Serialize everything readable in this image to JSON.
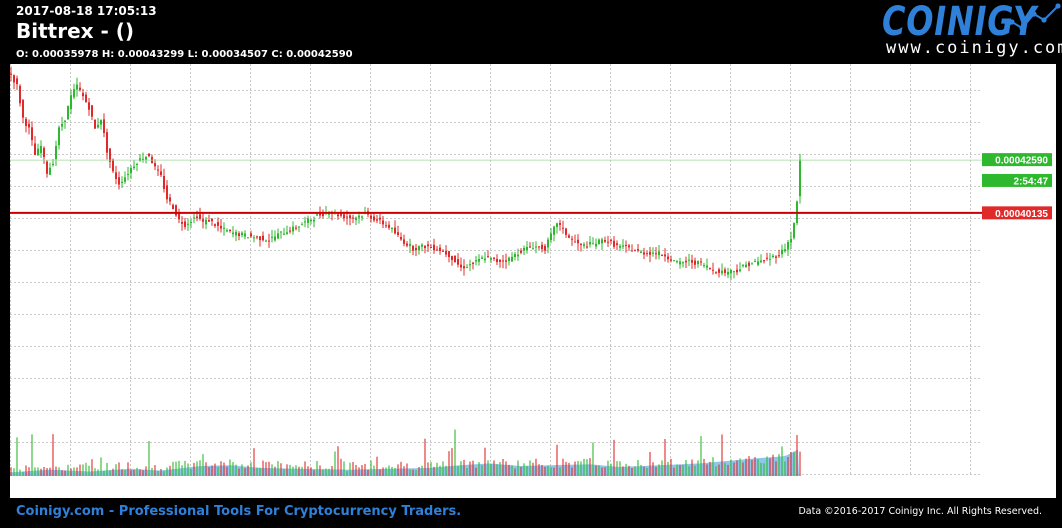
{
  "header": {
    "timestamp": "2017-08-18 17:05:13",
    "title": "Bittrex -  ()",
    "ohlc": "O: 0.00035978 H: 0.00043299 L: 0.00034507 C: 0.00042590"
  },
  "logo": {
    "name": "COINIGY",
    "url": "www.coinigy.com"
  },
  "footer": {
    "left": "Coinigy.com - Professional Tools For Cryptocurrency Traders.",
    "right": "Data ©2016-2017 Coinigy Inc. All Rights Reserved."
  },
  "chart_data": {
    "type": "candlestick",
    "ylim": [
      0.00028,
      0.00047
    ],
    "grid": true,
    "colors": {
      "up": "#2db82d",
      "down": "#e02a2a",
      "volume_area": "#6ab4e6",
      "price_line": "#cc0000"
    },
    "price_labels": [
      {
        "text": "0.00042590",
        "value": 0.0004259,
        "color": "#2db82d"
      },
      {
        "text": "2:54:47",
        "value": 0.0004163,
        "color": "#2db82d"
      },
      {
        "text": "0.00040135",
        "value": 0.00040135,
        "color": "#e02a2a"
      }
    ],
    "horizontal_line": 0.00040135,
    "close_line": 0.0004259,
    "anchors": [
      [
        0,
        0.000465
      ],
      [
        6,
        0.00046
      ],
      [
        12,
        0.000445
      ],
      [
        18,
        0.00044
      ],
      [
        24,
        0.000428
      ],
      [
        30,
        0.000432
      ],
      [
        36,
        0.00042
      ],
      [
        42,
        0.000425
      ],
      [
        48,
        0.00044
      ],
      [
        54,
        0.000445
      ],
      [
        60,
        0.000455
      ],
      [
        66,
        0.00046
      ],
      [
        72,
        0.000455
      ],
      [
        78,
        0.00045
      ],
      [
        84,
        0.00044
      ],
      [
        90,
        0.000445
      ],
      [
        96,
        0.00043
      ],
      [
        102,
        0.00042
      ],
      [
        108,
        0.000415
      ],
      [
        114,
        0.000418
      ],
      [
        120,
        0.000422
      ],
      [
        126,
        0.000425
      ],
      [
        132,
        0.000427
      ],
      [
        138,
        0.000428
      ],
      [
        144,
        0.000422
      ],
      [
        150,
        0.000418
      ],
      [
        156,
        0.000408
      ],
      [
        162,
        0.000404
      ],
      [
        168,
        0.000398
      ],
      [
        174,
        0.000396
      ],
      [
        180,
        0.000398
      ],
      [
        186,
        0.0004
      ],
      [
        192,
        0.000397
      ],
      [
        198,
        0.000398
      ],
      [
        210,
        0.000394
      ],
      [
        222,
        0.000392
      ],
      [
        234,
        0.000391
      ],
      [
        246,
        0.00039
      ],
      [
        258,
        0.000389
      ],
      [
        270,
        0.000392
      ],
      [
        282,
        0.000394
      ],
      [
        294,
        0.000397
      ],
      [
        306,
        0.0004
      ],
      [
        318,
        0.000402
      ],
      [
        330,
        0.0004
      ],
      [
        342,
        0.000399
      ],
      [
        354,
        0.000401
      ],
      [
        366,
        0.000398
      ],
      [
        378,
        0.000395
      ],
      [
        390,
        0.000389
      ],
      [
        402,
        0.000385
      ],
      [
        414,
        0.000386
      ],
      [
        426,
        0.000385
      ],
      [
        438,
        0.000382
      ],
      [
        450,
        0.000376
      ],
      [
        462,
        0.000378
      ],
      [
        474,
        0.000381
      ],
      [
        486,
        0.000379
      ],
      [
        498,
        0.00038
      ],
      [
        510,
        0.000384
      ],
      [
        522,
        0.000386
      ],
      [
        534,
        0.000385
      ],
      [
        546,
        0.000397
      ],
      [
        558,
        0.00039
      ],
      [
        570,
        0.000386
      ],
      [
        582,
        0.000387
      ],
      [
        594,
        0.000389
      ],
      [
        606,
        0.000386
      ],
      [
        618,
        0.000385
      ],
      [
        630,
        0.000383
      ],
      [
        642,
        0.000383
      ],
      [
        654,
        0.000382
      ],
      [
        666,
        0.000378
      ],
      [
        678,
        0.000379
      ],
      [
        690,
        0.000378
      ],
      [
        702,
        0.000375
      ],
      [
        714,
        0.000374
      ],
      [
        726,
        0.000375
      ],
      [
        738,
        0.000378
      ],
      [
        750,
        0.000379
      ],
      [
        762,
        0.000381
      ],
      [
        770,
        0.000383
      ],
      [
        775,
        0.000386
      ],
      [
        780,
        0.00039
      ],
      [
        785,
        0.0004
      ],
      [
        789,
        0.000426
      ]
    ],
    "volume_anchors": [
      [
        0,
        4
      ],
      [
        40,
        7
      ],
      [
        80,
        5
      ],
      [
        120,
        8
      ],
      [
        150,
        6
      ],
      [
        190,
        11
      ],
      [
        220,
        12
      ],
      [
        250,
        9
      ],
      [
        290,
        8
      ],
      [
        340,
        7
      ],
      [
        380,
        8
      ],
      [
        420,
        9
      ],
      [
        450,
        12
      ],
      [
        480,
        14
      ],
      [
        510,
        11
      ],
      [
        540,
        12
      ],
      [
        580,
        13
      ],
      [
        610,
        10
      ],
      [
        650,
        12
      ],
      [
        690,
        14
      ],
      [
        720,
        17
      ],
      [
        750,
        20
      ],
      [
        775,
        22
      ],
      [
        789,
        30
      ]
    ]
  }
}
